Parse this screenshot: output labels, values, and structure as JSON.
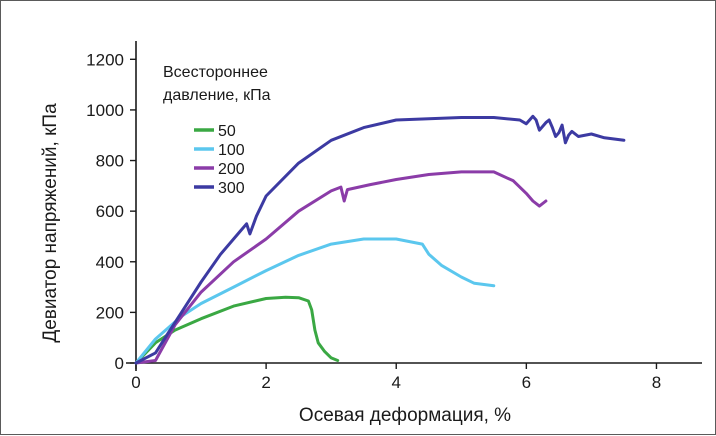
{
  "chart_data": {
    "type": "line",
    "title": "",
    "xlabel": "Осевая деформация, %",
    "ylabel": "Девиатор напряжений, кПа",
    "xlim": [
      0,
      8.7
    ],
    "ylim": [
      0,
      1300
    ],
    "x_ticks": [
      "0",
      "2",
      "4",
      "6",
      "8"
    ],
    "y_ticks": [
      "0",
      "200",
      "400",
      "600",
      "800",
      "1000",
      "1200"
    ],
    "grid": false,
    "legend": {
      "title_lines": [
        "Всестороннее",
        "давление, кПа"
      ],
      "placement": "top-left"
    },
    "series": [
      {
        "name": "50",
        "color": "#3aa843",
        "x": [
          0,
          0.3,
          0.6,
          1.0,
          1.5,
          2.0,
          2.3,
          2.5,
          2.65,
          2.7,
          2.75,
          2.8,
          2.9,
          3.0,
          3.1
        ],
        "y": [
          0,
          80,
          130,
          175,
          225,
          255,
          260,
          258,
          245,
          210,
          130,
          80,
          45,
          20,
          10
        ]
      },
      {
        "name": "100",
        "color": "#5bc7ee",
        "x": [
          0,
          0.3,
          0.7,
          1.0,
          1.5,
          2.0,
          2.5,
          3.0,
          3.5,
          4.0,
          4.4,
          4.5,
          4.7,
          5.0,
          5.2,
          5.5
        ],
        "y": [
          0,
          95,
          185,
          235,
          300,
          365,
          425,
          470,
          490,
          490,
          470,
          430,
          385,
          340,
          315,
          305
        ]
      },
      {
        "name": "200",
        "color": "#8b3ca8",
        "x": [
          0,
          0.3,
          0.6,
          1.0,
          1.5,
          2.0,
          2.5,
          3.0,
          3.15,
          3.2,
          3.25,
          3.6,
          4.0,
          4.5,
          5.0,
          5.5,
          5.8,
          6.0,
          6.1,
          6.2,
          6.3
        ],
        "y": [
          0,
          10,
          150,
          280,
          400,
          490,
          600,
          680,
          695,
          640,
          685,
          705,
          725,
          745,
          755,
          755,
          720,
          670,
          640,
          620,
          640
        ]
      },
      {
        "name": "300",
        "color": "#3c3aa2",
        "x": [
          0,
          0.3,
          0.5,
          0.7,
          1.0,
          1.3,
          1.6,
          1.7,
          1.75,
          1.85,
          2.0,
          2.5,
          3.0,
          3.5,
          4.0,
          4.5,
          5.0,
          5.5,
          5.9,
          6.0,
          6.1,
          6.15,
          6.2,
          6.3,
          6.35,
          6.4,
          6.45,
          6.5,
          6.55,
          6.6,
          6.65,
          6.7,
          6.8,
          7.0,
          7.2,
          7.5
        ],
        "y": [
          0,
          40,
          120,
          200,
          320,
          430,
          520,
          550,
          510,
          580,
          660,
          790,
          880,
          930,
          960,
          965,
          970,
          970,
          960,
          945,
          975,
          960,
          920,
          950,
          960,
          930,
          895,
          910,
          940,
          870,
          900,
          915,
          895,
          905,
          890,
          880
        ]
      }
    ]
  }
}
